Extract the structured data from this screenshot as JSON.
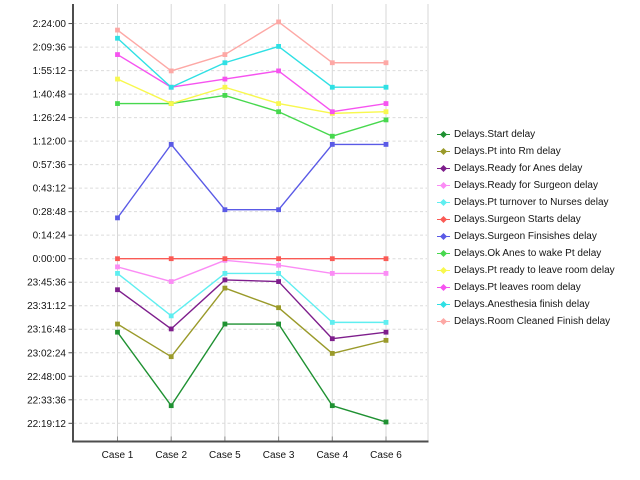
{
  "window": {
    "background": "#ffffff"
  },
  "styles": {
    "grid_horizontal": "#dcdcdc",
    "grid_vertical": "#d7d7d7",
    "axis": "#4d4d4d",
    "tick_stub": "#8c8c8c",
    "text": "#141414"
  },
  "chart_data": {
    "type": "line",
    "title": "",
    "xlabel": "",
    "ylabel": "",
    "legend_position": "right",
    "grid": {
      "horizontal": "dashed",
      "vertical": "solid"
    },
    "categories": [
      "Case 1",
      "Case 2",
      "Case 5",
      "Case 3",
      "Case 4",
      "Case 6"
    ],
    "y_axis": {
      "unit": "time of day (h:mm:ss), minutes relative to midnight",
      "tick_labels": [
        "2:24:00",
        "2:09:36",
        "1:55:12",
        "1:40:48",
        "1:26:24",
        "1:12:00",
        "0:57:36",
        "0:43:12",
        "0:28:48",
        "0:14:24",
        "0:00:00",
        "23:45:36",
        "23:31:12",
        "23:16:48",
        "23:02:24",
        "22:48:00",
        "22:33:36",
        "22:19:12"
      ],
      "tick_minutes": [
        144,
        129.6,
        115.2,
        100.8,
        86.4,
        72,
        57.6,
        43.2,
        28.8,
        14.4,
        0,
        -14.4,
        -28.8,
        -43.2,
        -57.6,
        -72,
        -86.4,
        -100.8
      ],
      "range_minutes": [
        -100.8,
        144
      ]
    },
    "series": [
      {
        "name": "Delays.Start delay",
        "color": "#1f9132",
        "values_minutes": [
          -45,
          -90,
          -40,
          -40,
          -90,
          -100
        ],
        "values_hhmm": [
          "23:15",
          "22:30",
          "23:20",
          "23:20",
          "22:30",
          "22:20"
        ]
      },
      {
        "name": "Delays.Pt into Rm delay",
        "color": "#9a9a2a",
        "values_minutes": [
          -40,
          -60,
          -18,
          -30,
          -58,
          -50
        ],
        "values_hhmm": [
          "23:20",
          "23:00",
          "23:42",
          "23:30",
          "23:02",
          "23:10"
        ]
      },
      {
        "name": "Delays.Ready for Anes delay",
        "color": "#7e1e8c",
        "values_minutes": [
          -19,
          -43,
          -13,
          -14,
          -49,
          -45
        ],
        "values_hhmm": [
          "23:41",
          "23:17",
          "23:47",
          "23:46",
          "23:11",
          "23:15"
        ]
      },
      {
        "name": "Delays.Ready for Surgeon delay",
        "color": "#fb8cf5",
        "values_minutes": [
          -5,
          -14,
          -1,
          -4,
          -9,
          -9
        ],
        "values_hhmm": [
          "23:55",
          "23:46",
          "23:59",
          "23:56",
          "23:51",
          "23:51"
        ]
      },
      {
        "name": "Delays.Pt turnover to Nurses delay",
        "color": "#5feef0",
        "values_minutes": [
          -9,
          -35,
          -9,
          -9,
          -39,
          -39
        ],
        "values_hhmm": [
          "23:51",
          "23:25",
          "23:51",
          "23:51",
          "23:21",
          "23:21"
        ]
      },
      {
        "name": "Delays.Surgeon Starts delay",
        "color": "#fa5a55",
        "values_minutes": [
          0,
          0,
          0,
          0,
          0,
          0
        ],
        "values_hhmm": [
          "0:00",
          "0:00",
          "0:00",
          "0:00",
          "0:00",
          "0:00"
        ]
      },
      {
        "name": "Delays.Surgeon Finsishes delay",
        "color": "#5a5ae6",
        "values_minutes": [
          25,
          70,
          30,
          30,
          70,
          70
        ],
        "values_hhmm": [
          "0:25",
          "1:10",
          "0:30",
          "0:30",
          "1:10",
          "1:10"
        ]
      },
      {
        "name": "Delays.Ok Anes to wake Pt delay",
        "color": "#47d84e",
        "values_minutes": [
          95,
          95,
          100,
          90,
          75,
          85
        ],
        "values_hhmm": [
          "1:35",
          "1:35",
          "1:40",
          "1:30",
          "1:15",
          "1:25"
        ]
      },
      {
        "name": "Delays.Pt ready to leave room delay",
        "color": "#f8f84e",
        "values_minutes": [
          110,
          95,
          105,
          95,
          89,
          90
        ],
        "values_hhmm": [
          "1:50",
          "1:35",
          "1:45",
          "1:35",
          "1:29",
          "1:30"
        ]
      },
      {
        "name": "Delays.Pt leaves room delay",
        "color": "#f653f0",
        "values_minutes": [
          125,
          105,
          110,
          115,
          90,
          95
        ],
        "values_hhmm": [
          "2:05",
          "1:45",
          "1:50",
          "1:55",
          "1:30",
          "1:35"
        ]
      },
      {
        "name": "Delays.Anesthesia finish delay",
        "color": "#2fe0e4",
        "values_minutes": [
          135,
          105,
          120,
          130,
          105,
          105
        ],
        "values_hhmm": [
          "2:15",
          "1:45",
          "2:00",
          "2:10",
          "1:45",
          "1:45"
        ]
      },
      {
        "name": "Delays.Room Cleaned Finish delay",
        "color": "#fda8a5",
        "values_minutes": [
          140,
          115,
          125,
          145,
          120,
          120
        ],
        "values_hhmm": [
          "2:20",
          "1:55",
          "2:05",
          "2:25",
          "2:00",
          "2:00"
        ]
      }
    ]
  }
}
